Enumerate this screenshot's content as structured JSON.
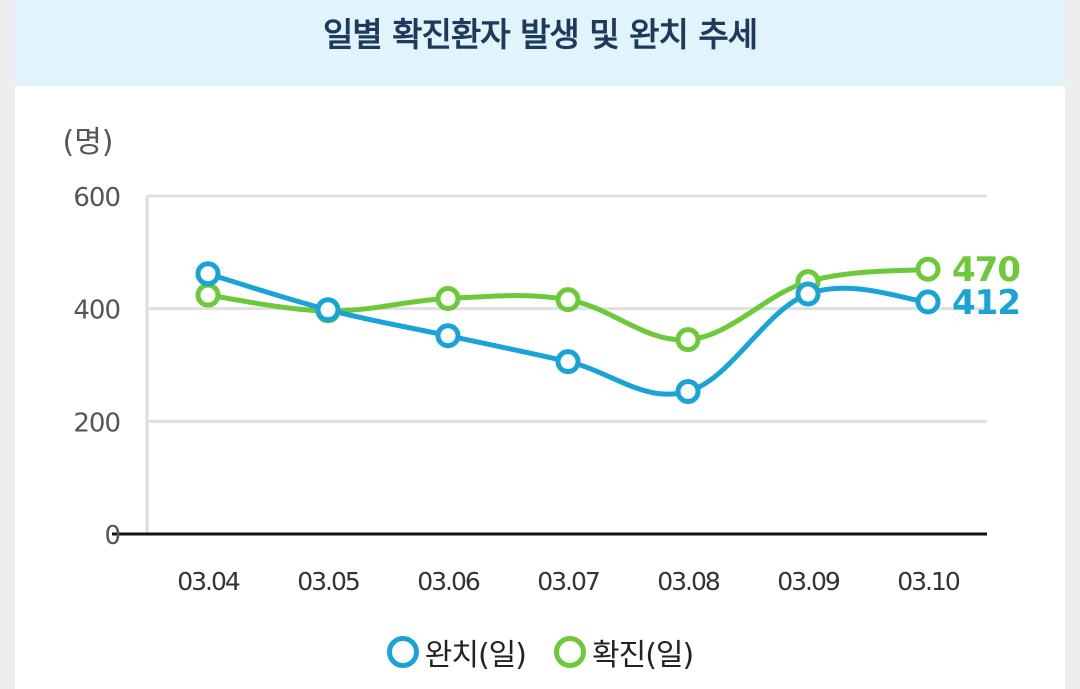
{
  "header": {
    "title": "일별 확진환자 발생 및 완치 추세"
  },
  "chart_data": {
    "type": "line",
    "title": "일별 확진환자 발생 및 완치 추세",
    "ylabel": "(명)",
    "xlabel": "",
    "ylim": [
      0,
      600
    ],
    "yticks": [
      0,
      200,
      400,
      600
    ],
    "categories": [
      "03.04",
      "03.05",
      "03.06",
      "03.07",
      "03.08",
      "03.09",
      "03.10"
    ],
    "series": [
      {
        "name": "완치(일)",
        "color": "#1aa3d6",
        "values": [
          462,
          398,
          352,
          306,
          253,
          426,
          412
        ],
        "end_label": "412"
      },
      {
        "name": "확진(일)",
        "color": "#6cc93a",
        "values": [
          424,
          396,
          418,
          416,
          345,
          448,
          470
        ],
        "end_label": "470"
      }
    ],
    "grid": true,
    "legend": "bottom-center"
  }
}
